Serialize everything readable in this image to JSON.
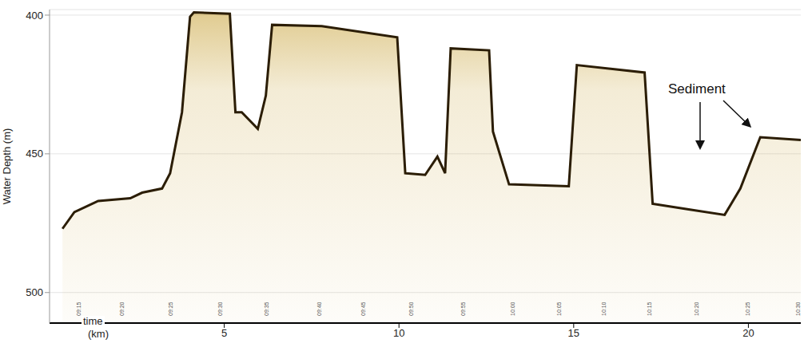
{
  "chart_data": {
    "type": "area",
    "y_label": "Water Depth (m)",
    "x_label": "(km)",
    "time_title": "time",
    "annotation": "Sediment",
    "color": "#c9a43c",
    "grid": true,
    "x": [
      0.37,
      0.71,
      1.39,
      2.31,
      2.65,
      3.22,
      3.45,
      3.79,
      4.02,
      4.13,
      5.16,
      5.32,
      5.5,
      5.96,
      6.19,
      6.37,
      7.79,
      9.95,
      10.18,
      10.75,
      11.1,
      11.32,
      11.48,
      12.58,
      12.69,
      13.15,
      14.86,
      15.09,
      17.03,
      17.26,
      18.29,
      19.32,
      19.77,
      20.34,
      21.5
    ],
    "values": [
      477,
      471,
      467,
      466,
      464,
      462.5,
      457,
      435,
      400.6,
      399,
      399.5,
      435,
      435,
      441,
      429,
      403.5,
      404,
      408,
      457,
      457.6,
      451,
      457,
      412,
      412.7,
      442,
      461,
      461.7,
      418,
      420.7,
      468,
      470,
      472,
      462.5,
      444,
      445
    ],
    "xlim": [
      0,
      21.5
    ],
    "xticks": [
      5,
      10,
      15,
      20
    ],
    "ylim": [
      398,
      511
    ],
    "yticks": [
      400,
      450,
      500
    ],
    "time_labels": [
      {
        "x": 0.84,
        "label": "09:15"
      },
      {
        "x": 2.08,
        "label": "09:20"
      },
      {
        "x": 3.49,
        "label": "09:25"
      },
      {
        "x": 4.89,
        "label": "09:30"
      },
      {
        "x": 6.23,
        "label": "09:35"
      },
      {
        "x": 7.74,
        "label": "09:40"
      },
      {
        "x": 9.0,
        "label": "09:45"
      },
      {
        "x": 10.37,
        "label": "09:50"
      },
      {
        "x": 11.85,
        "label": "09:55"
      },
      {
        "x": 13.27,
        "label": "10:00"
      },
      {
        "x": 14.59,
        "label": "10:05"
      },
      {
        "x": 15.87,
        "label": "10:10"
      },
      {
        "x": 17.17,
        "label": "10:15"
      },
      {
        "x": 18.52,
        "label": "10:20"
      },
      {
        "x": 20.0,
        "label": "10:25"
      },
      {
        "x": 21.44,
        "label": "10:30"
      }
    ]
  }
}
